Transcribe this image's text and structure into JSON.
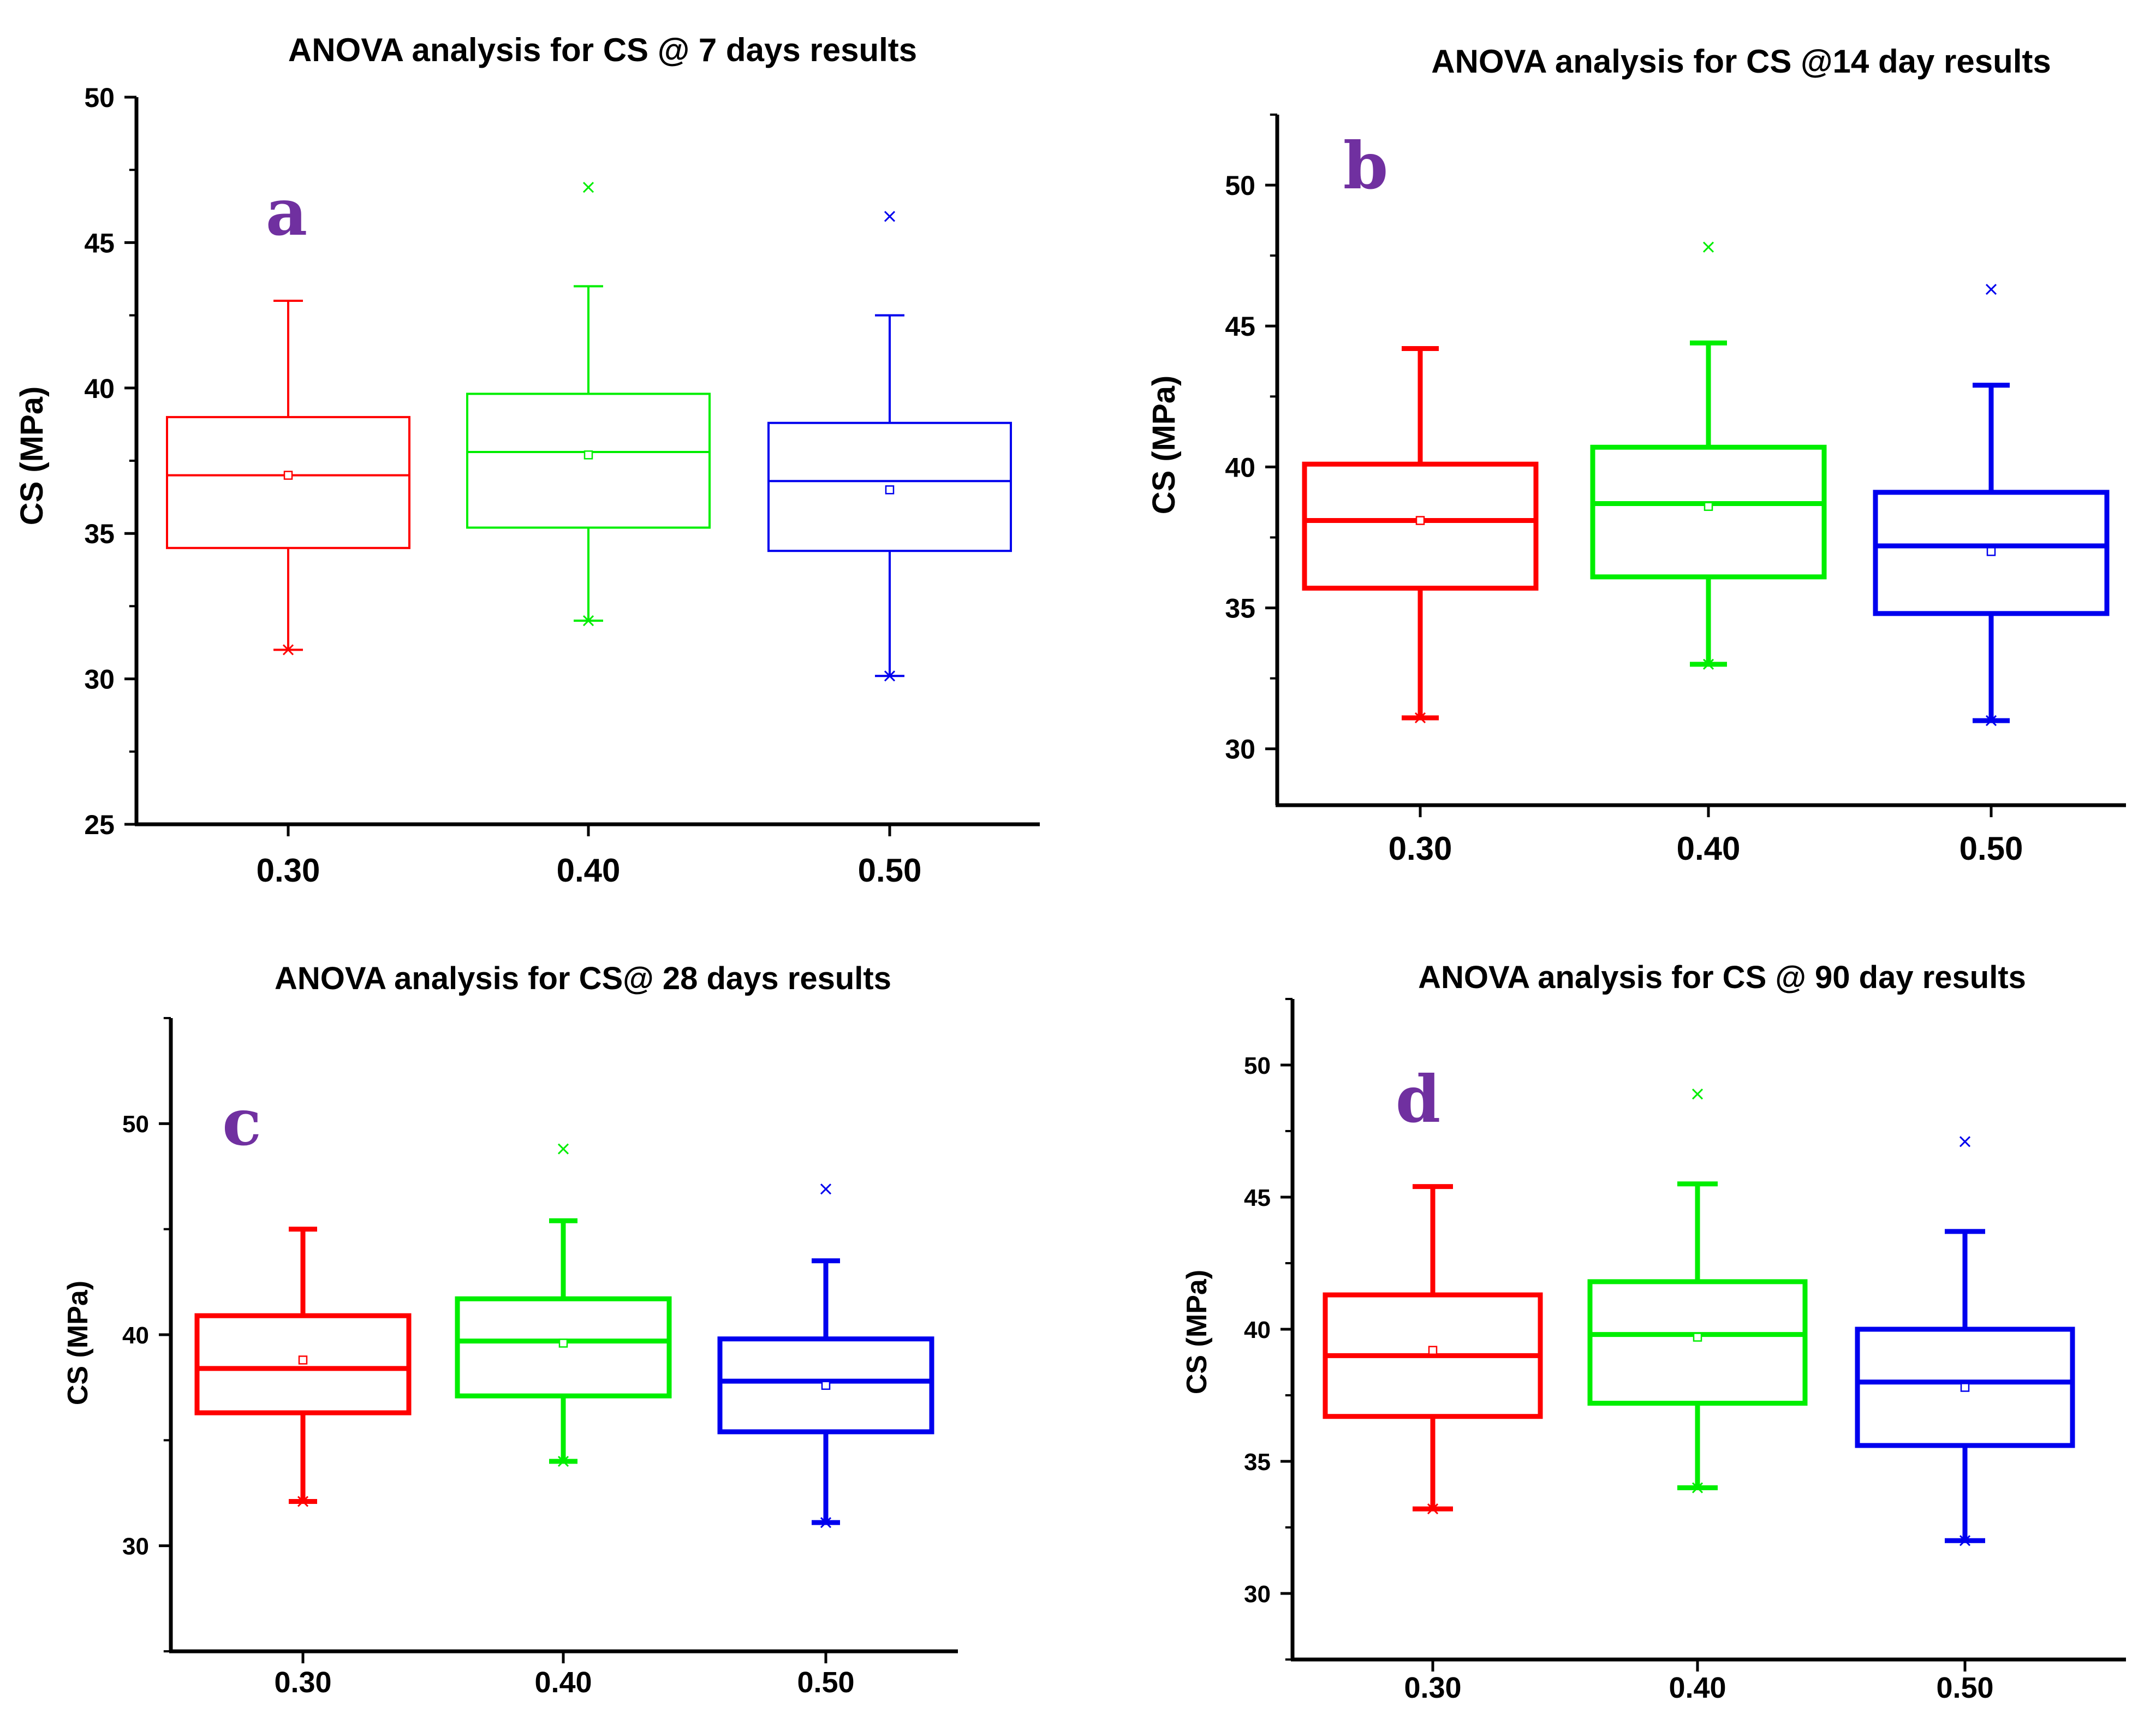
{
  "chart_data": [
    {
      "type": "box",
      "panel_label": "a",
      "title": "ANOVA analysis for CS @ 7 days results",
      "ylabel": "CS (MPa)",
      "categories": [
        "0.30",
        "0.40",
        "0.50"
      ],
      "yticks": [
        "25",
        "30",
        "35",
        "40",
        "45",
        "50"
      ],
      "ylim": [
        25,
        50
      ],
      "series": [
        {
          "category": "0.30",
          "color": "#ff0000",
          "whisker_low": 31.0,
          "q1": 34.5,
          "median": 37.0,
          "q3": 39.0,
          "whisker_high": 43.0,
          "mean": 37.0,
          "min": 31.0
        },
        {
          "category": "0.40",
          "color": "#00ee00",
          "whisker_low": 32.0,
          "q1": 35.2,
          "median": 37.8,
          "q3": 39.8,
          "whisker_high": 43.5,
          "mean": 37.7,
          "min": 32.0,
          "max": 46.9
        },
        {
          "category": "0.50",
          "color": "#0000ee",
          "whisker_low": 30.1,
          "q1": 34.4,
          "median": 36.8,
          "q3": 38.8,
          "whisker_high": 42.5,
          "mean": 36.5,
          "min": 30.1,
          "max": 45.9
        }
      ]
    },
    {
      "type": "box",
      "panel_label": "b",
      "title": "ANOVA  analysis for CS @14 day results",
      "ylabel": "CS (MPa)",
      "categories": [
        "0.30",
        "0.40",
        "0.50"
      ],
      "yticks": [
        "30",
        "35",
        "40",
        "45",
        "50"
      ],
      "ylim": [
        28,
        52.5
      ],
      "series": [
        {
          "category": "0.30",
          "color": "#ff0000",
          "whisker_low": 31.1,
          "q1": 35.7,
          "median": 38.1,
          "q3": 40.1,
          "whisker_high": 44.2,
          "mean": 38.1,
          "min": 31.1
        },
        {
          "category": "0.40",
          "color": "#00ee00",
          "whisker_low": 33.0,
          "q1": 36.1,
          "median": 38.7,
          "q3": 40.7,
          "whisker_high": 44.4,
          "mean": 38.6,
          "min": 33.0,
          "max": 47.8
        },
        {
          "category": "0.50",
          "color": "#0000ee",
          "whisker_low": 31.0,
          "q1": 34.8,
          "median": 37.2,
          "q3": 39.1,
          "whisker_high": 42.9,
          "mean": 37.0,
          "min": 31.0,
          "max": 46.3
        }
      ]
    },
    {
      "type": "box",
      "panel_label": "c",
      "title": "ANOVA analysis for CS@ 28 days results",
      "ylabel": "CS (MPa)",
      "categories": [
        "0.30",
        "0.40",
        "0.50"
      ],
      "yticks": [
        "30",
        "40",
        "50"
      ],
      "ylim": [
        25,
        55
      ],
      "series": [
        {
          "category": "0.30",
          "color": "#ff0000",
          "whisker_low": 32.1,
          "q1": 36.3,
          "median": 38.4,
          "q3": 40.9,
          "whisker_high": 45.0,
          "mean": 38.8,
          "min": 32.1
        },
        {
          "category": "0.40",
          "color": "#00ee00",
          "whisker_low": 34.0,
          "q1": 37.1,
          "median": 39.7,
          "q3": 41.7,
          "whisker_high": 45.4,
          "mean": 39.6,
          "min": 34.0,
          "max": 48.8
        },
        {
          "category": "0.50",
          "color": "#0000ee",
          "whisker_low": 31.1,
          "q1": 35.4,
          "median": 37.8,
          "q3": 39.8,
          "whisker_high": 43.5,
          "mean": 37.6,
          "min": 31.1,
          "max": 46.9
        }
      ]
    },
    {
      "type": "box",
      "panel_label": "d",
      "title": "ANOVA analysis for CS @ 90 day results",
      "ylabel": "CS (MPa)",
      "categories": [
        "0.30",
        "0.40",
        "0.50"
      ],
      "yticks": [
        "30",
        "35",
        "40",
        "45",
        "50"
      ],
      "ylim": [
        27.5,
        52.5
      ],
      "series": [
        {
          "category": "0.30",
          "color": "#ff0000",
          "whisker_low": 33.2,
          "q1": 36.7,
          "median": 39.0,
          "q3": 41.3,
          "whisker_high": 45.4,
          "mean": 39.2,
          "min": 33.2
        },
        {
          "category": "0.40",
          "color": "#00ee00",
          "whisker_low": 34.0,
          "q1": 37.2,
          "median": 39.8,
          "q3": 41.8,
          "whisker_high": 45.5,
          "mean": 39.7,
          "min": 34.0,
          "max": 48.9
        },
        {
          "category": "0.50",
          "color": "#0000ee",
          "whisker_low": 32.0,
          "q1": 35.6,
          "median": 38.0,
          "q3": 40.0,
          "whisker_high": 43.7,
          "mean": 37.8,
          "min": 32.0,
          "max": 47.1
        }
      ]
    }
  ],
  "colors": {
    "panel_letter": "#7030a0",
    "axis": "#000000"
  }
}
